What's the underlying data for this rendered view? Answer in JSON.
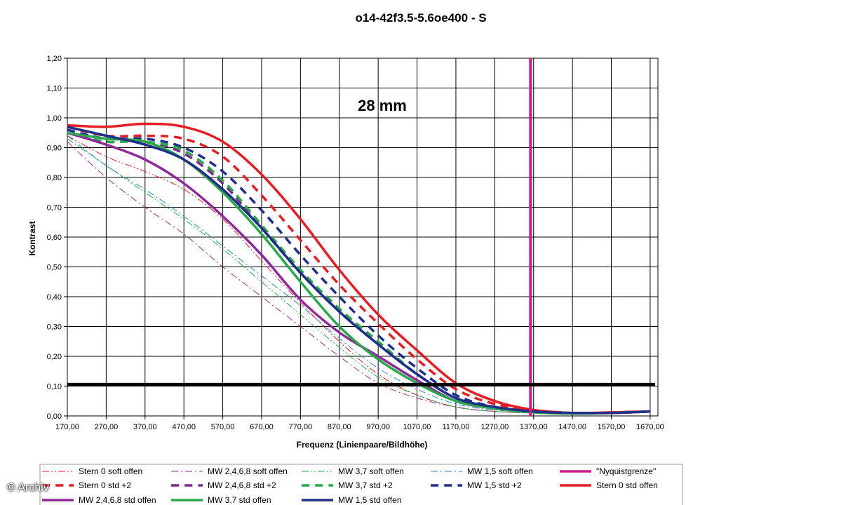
{
  "chart_data": {
    "type": "line",
    "title": "o14-42f3.5-5.6oe400 - S",
    "annotation": "28 mm",
    "xlabel": "Frequenz (Linienpaare/Bildhöhe)",
    "ylabel": "Kontrast",
    "xlim": [
      170,
      1690
    ],
    "ylim": [
      0,
      1.2
    ],
    "x_ticks": [
      "170,00",
      "270,00",
      "370,00",
      "470,00",
      "570,00",
      "670,00",
      "770,00",
      "870,00",
      "970,00",
      "1070,00",
      "1170,00",
      "1270,00",
      "1370,00",
      "1470,00",
      "1570,00",
      "1670,00"
    ],
    "y_ticks": [
      "0,00",
      "0,10",
      "0,20",
      "0,30",
      "0,40",
      "0,50",
      "0,60",
      "0,70",
      "0,80",
      "0,90",
      "1,00",
      "1,10",
      "1,20"
    ],
    "grid": true,
    "legend_position": "bottom",
    "reference_lines": [
      {
        "name": "\"Nyquistgrenze\"",
        "orientation": "vertical",
        "value": 1362,
        "color": "#d01a8c"
      },
      {
        "name": "",
        "orientation": "horizontal",
        "value": 0.105,
        "color": "#000000"
      }
    ],
    "series": [
      {
        "name": "Stern 0 soft offen",
        "color": "#e31e24",
        "style": "dashdotdot",
        "width": 1,
        "points": [
          [
            170,
            0.94
          ],
          [
            270,
            0.87
          ],
          [
            370,
            0.82
          ],
          [
            470,
            0.76
          ],
          [
            570,
            0.66
          ],
          [
            670,
            0.52
          ],
          [
            770,
            0.38
          ],
          [
            870,
            0.25
          ],
          [
            970,
            0.14
          ],
          [
            1070,
            0.07
          ],
          [
            1170,
            0.03
          ],
          [
            1270,
            0.015
          ],
          [
            1370,
            0.01
          ],
          [
            1470,
            0.008
          ],
          [
            1570,
            0.01
          ],
          [
            1670,
            0.012
          ]
        ]
      },
      {
        "name": "MW 2,4,6,8 soft offen",
        "color": "#9b2a8f",
        "style": "dashdot",
        "width": 1,
        "points": [
          [
            170,
            0.92
          ],
          [
            270,
            0.8
          ],
          [
            370,
            0.7
          ],
          [
            470,
            0.61
          ],
          [
            570,
            0.5
          ],
          [
            670,
            0.4
          ],
          [
            770,
            0.3
          ],
          [
            870,
            0.2
          ],
          [
            970,
            0.11
          ],
          [
            1070,
            0.06
          ],
          [
            1170,
            0.03
          ],
          [
            1270,
            0.015
          ],
          [
            1370,
            0.01
          ],
          [
            1470,
            0.008
          ],
          [
            1570,
            0.01
          ],
          [
            1670,
            0.012
          ]
        ]
      },
      {
        "name": "MW 3,7 soft offen",
        "color": "#2aa84a",
        "style": "dashdotdot",
        "width": 1,
        "points": [
          [
            170,
            0.93
          ],
          [
            270,
            0.84
          ],
          [
            370,
            0.75
          ],
          [
            470,
            0.66
          ],
          [
            570,
            0.56
          ],
          [
            670,
            0.45
          ],
          [
            770,
            0.34
          ],
          [
            870,
            0.23
          ],
          [
            970,
            0.13
          ],
          [
            1070,
            0.07
          ],
          [
            1170,
            0.03
          ],
          [
            1270,
            0.015
          ],
          [
            1370,
            0.01
          ],
          [
            1470,
            0.008
          ],
          [
            1570,
            0.01
          ],
          [
            1670,
            0.012
          ]
        ]
      },
      {
        "name": "MW 1,5 soft offen",
        "color": "#2e86c1",
        "style": "dashdot",
        "width": 1,
        "points": [
          [
            170,
            0.94
          ],
          [
            270,
            0.84
          ],
          [
            370,
            0.76
          ],
          [
            470,
            0.67
          ],
          [
            570,
            0.57
          ],
          [
            670,
            0.47
          ],
          [
            770,
            0.37
          ],
          [
            870,
            0.26
          ],
          [
            970,
            0.16
          ],
          [
            1070,
            0.09
          ],
          [
            1170,
            0.04
          ],
          [
            1270,
            0.02
          ],
          [
            1370,
            0.012
          ],
          [
            1470,
            0.008
          ],
          [
            1570,
            0.01
          ],
          [
            1670,
            0.012
          ]
        ]
      },
      {
        "name": "Stern 0 std +2",
        "color": "#e31e24",
        "style": "dash",
        "width": 3.5,
        "points": [
          [
            170,
            0.97
          ],
          [
            270,
            0.94
          ],
          [
            370,
            0.94
          ],
          [
            470,
            0.93
          ],
          [
            570,
            0.87
          ],
          [
            670,
            0.74
          ],
          [
            770,
            0.59
          ],
          [
            870,
            0.44
          ],
          [
            970,
            0.31
          ],
          [
            1070,
            0.19
          ],
          [
            1170,
            0.09
          ],
          [
            1270,
            0.04
          ],
          [
            1370,
            0.02
          ],
          [
            1470,
            0.01
          ],
          [
            1570,
            0.01
          ],
          [
            1670,
            0.015
          ]
        ]
      },
      {
        "name": "MW 2,4,6,8 std +2",
        "color": "#7b2a8f",
        "style": "dash",
        "width": 3.5,
        "points": [
          [
            170,
            0.95
          ],
          [
            270,
            0.92
          ],
          [
            370,
            0.92
          ],
          [
            470,
            0.88
          ],
          [
            570,
            0.78
          ],
          [
            670,
            0.63
          ],
          [
            770,
            0.48
          ],
          [
            870,
            0.35
          ],
          [
            970,
            0.24
          ],
          [
            1070,
            0.14
          ],
          [
            1170,
            0.06
          ],
          [
            1270,
            0.03
          ],
          [
            1370,
            0.015
          ],
          [
            1470,
            0.01
          ],
          [
            1570,
            0.01
          ],
          [
            1670,
            0.015
          ]
        ]
      },
      {
        "name": "MW 3,7 std +2",
        "color": "#2aa84a",
        "style": "dash",
        "width": 3.5,
        "points": [
          [
            170,
            0.95
          ],
          [
            270,
            0.92
          ],
          [
            370,
            0.92
          ],
          [
            470,
            0.89
          ],
          [
            570,
            0.79
          ],
          [
            670,
            0.64
          ],
          [
            770,
            0.49
          ],
          [
            870,
            0.36
          ],
          [
            970,
            0.25
          ],
          [
            1070,
            0.14
          ],
          [
            1170,
            0.06
          ],
          [
            1270,
            0.03
          ],
          [
            1370,
            0.015
          ],
          [
            1470,
            0.01
          ],
          [
            1570,
            0.01
          ],
          [
            1670,
            0.015
          ]
        ]
      },
      {
        "name": "MW 1,5 std +2",
        "color": "#1f2f8a",
        "style": "dash",
        "width": 3.5,
        "points": [
          [
            170,
            0.96
          ],
          [
            270,
            0.93
          ],
          [
            370,
            0.93
          ],
          [
            470,
            0.9
          ],
          [
            570,
            0.82
          ],
          [
            670,
            0.69
          ],
          [
            770,
            0.54
          ],
          [
            870,
            0.4
          ],
          [
            970,
            0.27
          ],
          [
            1070,
            0.16
          ],
          [
            1170,
            0.07
          ],
          [
            1270,
            0.03
          ],
          [
            1370,
            0.015
          ],
          [
            1470,
            0.01
          ],
          [
            1570,
            0.01
          ],
          [
            1670,
            0.015
          ]
        ]
      },
      {
        "name": "Stern 0 std offen",
        "color": "#e31e24",
        "style": "solid",
        "width": 3.5,
        "points": [
          [
            170,
            0.975
          ],
          [
            270,
            0.97
          ],
          [
            370,
            0.98
          ],
          [
            470,
            0.97
          ],
          [
            570,
            0.92
          ],
          [
            670,
            0.81
          ],
          [
            770,
            0.66
          ],
          [
            870,
            0.49
          ],
          [
            970,
            0.34
          ],
          [
            1070,
            0.22
          ],
          [
            1170,
            0.11
          ],
          [
            1270,
            0.05
          ],
          [
            1370,
            0.02
          ],
          [
            1470,
            0.01
          ],
          [
            1570,
            0.012
          ],
          [
            1670,
            0.015
          ]
        ]
      },
      {
        "name": "MW 2,4,6,8 std offen",
        "color": "#8e2a9a",
        "style": "solid",
        "width": 3.5,
        "points": [
          [
            170,
            0.95
          ],
          [
            270,
            0.91
          ],
          [
            370,
            0.86
          ],
          [
            470,
            0.78
          ],
          [
            570,
            0.67
          ],
          [
            670,
            0.54
          ],
          [
            770,
            0.39
          ],
          [
            870,
            0.28
          ],
          [
            970,
            0.2
          ],
          [
            1070,
            0.12
          ],
          [
            1170,
            0.05
          ],
          [
            1270,
            0.025
          ],
          [
            1370,
            0.012
          ],
          [
            1470,
            0.008
          ],
          [
            1570,
            0.01
          ],
          [
            1670,
            0.015
          ]
        ]
      },
      {
        "name": "MW 3,7 std offen",
        "color": "#2aa84a",
        "style": "solid",
        "width": 3.5,
        "points": [
          [
            170,
            0.95
          ],
          [
            270,
            0.93
          ],
          [
            370,
            0.92
          ],
          [
            470,
            0.86
          ],
          [
            570,
            0.75
          ],
          [
            670,
            0.61
          ],
          [
            770,
            0.45
          ],
          [
            870,
            0.3
          ],
          [
            970,
            0.19
          ],
          [
            1070,
            0.11
          ],
          [
            1170,
            0.05
          ],
          [
            1270,
            0.025
          ],
          [
            1370,
            0.012
          ],
          [
            1470,
            0.008
          ],
          [
            1570,
            0.01
          ],
          [
            1670,
            0.015
          ]
        ]
      },
      {
        "name": "MW 1,5 std offen",
        "color": "#1f2f8a",
        "style": "solid",
        "width": 3.5,
        "points": [
          [
            170,
            0.97
          ],
          [
            270,
            0.94
          ],
          [
            370,
            0.91
          ],
          [
            470,
            0.86
          ],
          [
            570,
            0.76
          ],
          [
            670,
            0.63
          ],
          [
            770,
            0.48
          ],
          [
            870,
            0.35
          ],
          [
            970,
            0.24
          ],
          [
            1070,
            0.14
          ],
          [
            1170,
            0.06
          ],
          [
            1270,
            0.03
          ],
          [
            1370,
            0.015
          ],
          [
            1470,
            0.01
          ],
          [
            1570,
            0.01
          ],
          [
            1670,
            0.015
          ]
        ]
      }
    ],
    "legend_items": [
      {
        "label": "Stern 0 soft offen",
        "color": "#e31e24",
        "style": "dashdotdot",
        "width": 1
      },
      {
        "label": "MW 2,4,6,8 soft offen",
        "color": "#9b2a8f",
        "style": "dashdot",
        "width": 1
      },
      {
        "label": "MW 3,7 soft offen",
        "color": "#2aa84a",
        "style": "dashdotdot",
        "width": 1
      },
      {
        "label": "MW 1,5 soft offen",
        "color": "#2e86c1",
        "style": "dashdot",
        "width": 1
      },
      {
        "label": "\"Nyquistgrenze\"",
        "color": "#d01a8c",
        "style": "solid",
        "width": 3.5
      },
      {
        "label": "Stern 0 std +2",
        "color": "#e31e24",
        "style": "dash",
        "width": 3.5
      },
      {
        "label": "MW 2,4,6,8 std +2",
        "color": "#7b2a8f",
        "style": "dash",
        "width": 3.5
      },
      {
        "label": "MW 3,7 std +2",
        "color": "#2aa84a",
        "style": "dash",
        "width": 3.5
      },
      {
        "label": "MW 1,5 std +2",
        "color": "#1f2f8a",
        "style": "dash",
        "width": 3.5
      },
      {
        "label": "Stern 0 std offen",
        "color": "#e31e24",
        "style": "solid",
        "width": 3.5
      },
      {
        "label": "MW 2,4,6,8 std offen",
        "color": "#8e2a9a",
        "style": "solid",
        "width": 3.5
      },
      {
        "label": "MW 3,7 std offen",
        "color": "#2aa84a",
        "style": "solid",
        "width": 3.5
      },
      {
        "label": "MW 1,5 std offen",
        "color": "#1f2f8a",
        "style": "solid",
        "width": 3.5
      }
    ]
  },
  "watermark": "© Archiv"
}
